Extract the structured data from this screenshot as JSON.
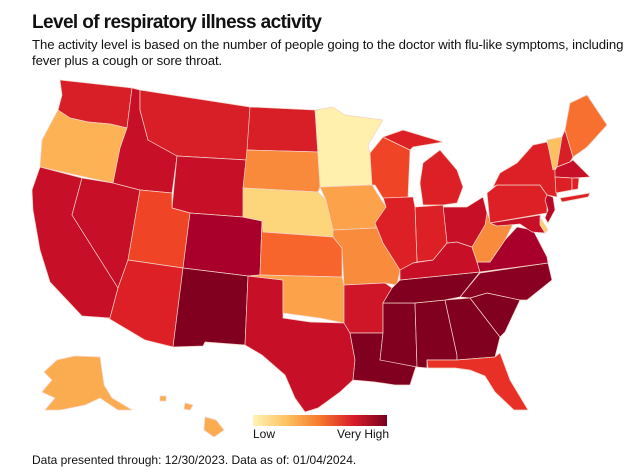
{
  "title": "Level of respiratory illness activity",
  "subtitle": "The activity level is based on the number of people going to the doctor with flu-like symptoms, including fever plus a cough or sore throat.",
  "legend": {
    "low_label": "Low",
    "high_label": "Very High"
  },
  "footer": "Data presented through: 12/30/2023. Data as of: 01/04/2024.",
  "state_colors": {
    "WA": "#d81e26",
    "OR": "#fcb255",
    "CA": "#c70f28",
    "NV": "#c70f28",
    "ID": "#c70f28",
    "MT": "#d81e26",
    "WY": "#c70f28",
    "UT": "#ef4526",
    "AZ": "#dd2026",
    "CO": "#a8002a",
    "NM": "#82001f",
    "ND": "#d81e26",
    "SD": "#f98a3c",
    "NE": "#fdd57a",
    "KS": "#f7652d",
    "OK": "#fca24a",
    "TX": "#c70f28",
    "MN": "#fff0ae",
    "IA": "#fca24a",
    "MO": "#f98c3c",
    "AR": "#cf1628",
    "LA": "#82001f",
    "WI": "#ef4526",
    "IL": "#dd2026",
    "MI": "#dd2026",
    "IN": "#dd2026",
    "OH": "#c70f28",
    "KY": "#c70f28",
    "TN": "#82001f",
    "MS": "#82001f",
    "AL": "#82001f",
    "GA": "#82001f",
    "FL": "#e83026",
    "SC": "#82001f",
    "NC": "#8a0022",
    "VA": "#a8002a",
    "WV": "#f98c3c",
    "MD": "#c70f28",
    "DE": "#fdcd72",
    "PA": "#dd2026",
    "NY": "#dd2026",
    "NJ": "#b80828",
    "VT": "#fdc060",
    "NH": "#d81e26",
    "ME": "#f7702f",
    "MA": "#c70f28",
    "CT": "#dd2026",
    "RI": "#dd2026",
    "AK": "#fcac50",
    "HI": "#fcac50"
  }
}
